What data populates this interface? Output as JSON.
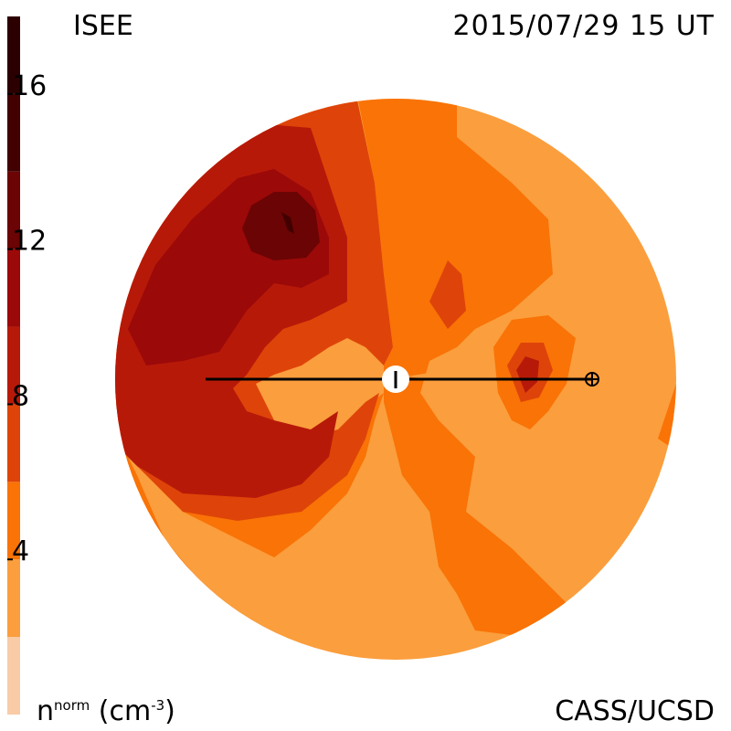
{
  "header": {
    "org": "ISEE",
    "timestamp": "2015/07/29 15 UT",
    "credit": "CASS/UCSD"
  },
  "colorbar": {
    "quantity": "n",
    "quantity_sup": "norm",
    "unit_open": "(cm",
    "unit_sup": "-3",
    "unit_close": ")",
    "ticks": [
      "4",
      "8",
      "12",
      "16"
    ],
    "levels": [
      {
        "from": 0,
        "to": 2,
        "color": "#f9cba6"
      },
      {
        "from": 2,
        "to": 4,
        "color": "#fb9e3d"
      },
      {
        "from": 4,
        "to": 6,
        "color": "#f97306"
      },
      {
        "from": 6,
        "to": 8,
        "color": "#de4409"
      },
      {
        "from": 8,
        "to": 10,
        "color": "#b71909"
      },
      {
        "from": 10,
        "to": 12,
        "color": "#9b0909"
      },
      {
        "from": 12,
        "to": 14,
        "color": "#6b0404"
      },
      {
        "from": 14,
        "to": 16,
        "color": "#420000"
      },
      {
        "from": 16,
        "to": 18,
        "color": "#2c0000"
      }
    ],
    "range": [
      0,
      18
    ]
  },
  "chart_data": {
    "type": "heatmap",
    "title": "",
    "colorbar_label": "n norm (cm-3)",
    "colorbar_ticks": [
      4,
      8,
      12,
      16
    ],
    "colorbar_range": [
      0,
      18
    ],
    "markers": [
      "sun",
      "earth"
    ]
  }
}
